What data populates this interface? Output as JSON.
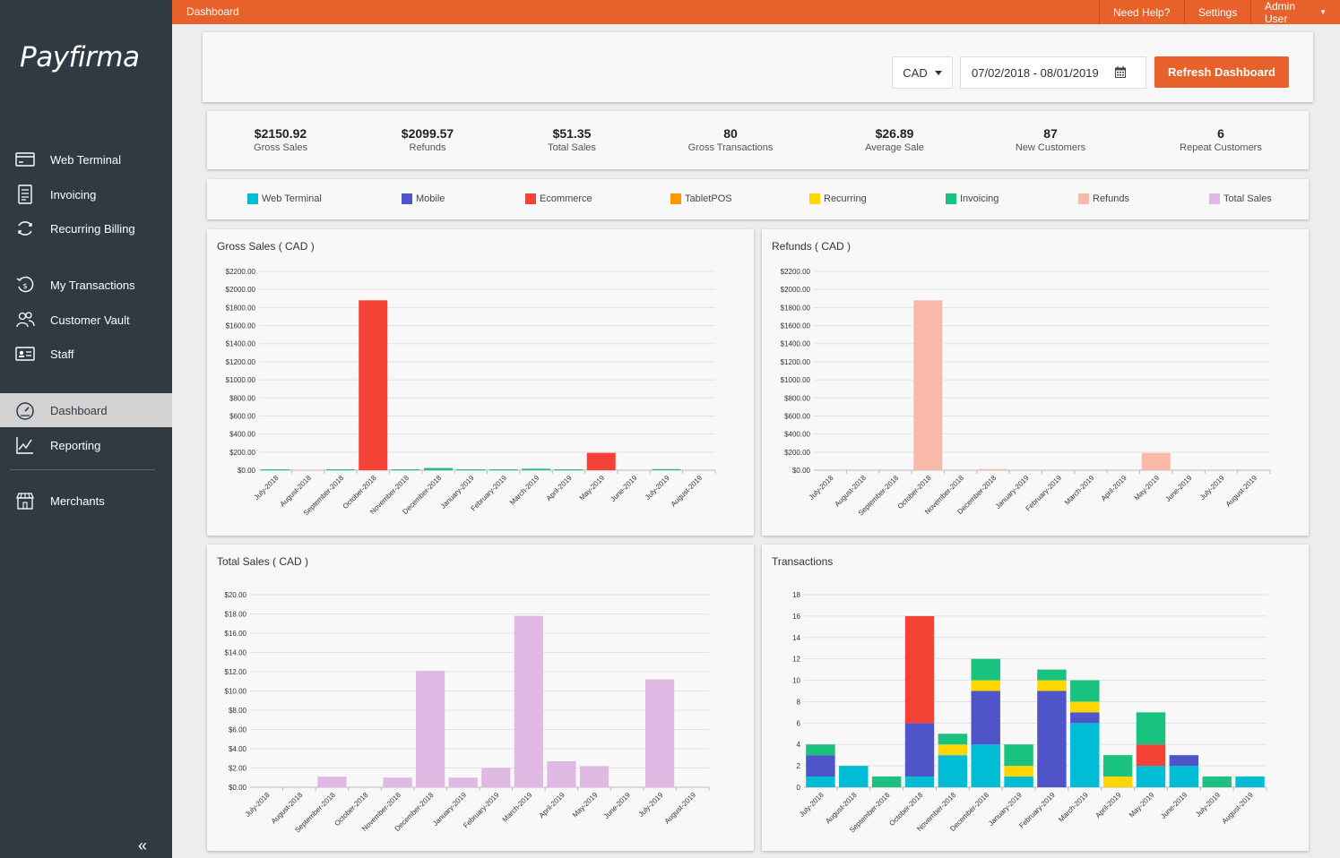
{
  "brand": "Payfirma",
  "sidebar": {
    "items": [
      {
        "label": "Web Terminal",
        "icon": "terminal-icon"
      },
      {
        "label": "Invoicing",
        "icon": "invoice-icon"
      },
      {
        "label": "Recurring Billing",
        "icon": "recurring-icon"
      },
      {
        "label": "My Transactions",
        "icon": "transactions-icon"
      },
      {
        "label": "Customer Vault",
        "icon": "customers-icon"
      },
      {
        "label": "Staff",
        "icon": "staff-icon"
      },
      {
        "label": "Dashboard",
        "icon": "dashboard-icon",
        "active": true
      },
      {
        "label": "Reporting",
        "icon": "reporting-icon"
      },
      {
        "label": "Merchants",
        "icon": "merchants-icon"
      }
    ],
    "collapse_label": "«"
  },
  "topbar": {
    "breadcrumb": "Dashboard",
    "help": "Need Help?",
    "settings": "Settings",
    "user": "Admin User"
  },
  "filters": {
    "currency": "CAD",
    "date_range": "07/02/2018 - 08/01/2019",
    "refresh_label": "Refresh Dashboard"
  },
  "stats": [
    {
      "value": "$2150.92",
      "label": "Gross Sales"
    },
    {
      "value": "$2099.57",
      "label": "Refunds"
    },
    {
      "value": "$51.35",
      "label": "Total Sales"
    },
    {
      "value": "80",
      "label": "Gross Transactions"
    },
    {
      "value": "$26.89",
      "label": "Average Sale"
    },
    {
      "value": "87",
      "label": "New Customers"
    },
    {
      "value": "6",
      "label": "Repeat Customers"
    }
  ],
  "legend": [
    {
      "label": "Web Terminal",
      "color": "#00bcd4"
    },
    {
      "label": "Mobile",
      "color": "#4f55c8"
    },
    {
      "label": "Ecommerce",
      "color": "#f44336"
    },
    {
      "label": "TabletPOS",
      "color": "#ff9800"
    },
    {
      "label": "Recurring",
      "color": "#ffd600"
    },
    {
      "label": "Invoicing",
      "color": "#19c27e"
    },
    {
      "label": "Refunds",
      "color": "#f8b9a8"
    },
    {
      "label": "Total Sales",
      "color": "#dfb8e3"
    }
  ],
  "chart_data": [
    {
      "type": "bar",
      "title": "Gross Sales ( CAD )",
      "categories": [
        "July-2018",
        "August-2018",
        "September-2018",
        "October-2018",
        "November-2018",
        "December-2018",
        "January-2019",
        "February-2019",
        "March-2019",
        "April-2019",
        "May-2019",
        "June-2019",
        "July-2019",
        "August-2019"
      ],
      "ylim": [
        0,
        2200
      ],
      "yticks": [
        "$0.00",
        "$200.00",
        "$400.00",
        "$600.00",
        "$800.00",
        "$1000.00",
        "$1200.00",
        "$1400.00",
        "$1600.00",
        "$1800.00",
        "$2000.00",
        "$2200.00"
      ],
      "series": [
        {
          "values": [
            4,
            0,
            1,
            1880,
            6,
            24,
            5,
            8,
            16,
            2,
            192,
            0,
            12,
            0
          ],
          "colors": [
            "#19c27e",
            "#19c27e",
            "#19c27e",
            "#f44336",
            "#19c27e",
            "#19c27e",
            "#19c27e",
            "#19c27e",
            "#19c27e",
            "#19c27e",
            "#f44336",
            "#19c27e",
            "#19c27e",
            "#19c27e"
          ]
        }
      ]
    },
    {
      "type": "bar",
      "title": "Refunds ( CAD )",
      "categories": [
        "July-2018",
        "August-2018",
        "September-2018",
        "October-2018",
        "November-2018",
        "December-2018",
        "January-2019",
        "February-2019",
        "March-2019",
        "April-2019",
        "May-2019",
        "June-2019",
        "July-2019",
        "August-2019"
      ],
      "ylim": [
        0,
        2200
      ],
      "yticks": [
        "$0.00",
        "$200.00",
        "$400.00",
        "$600.00",
        "$800.00",
        "$1000.00",
        "$1200.00",
        "$1400.00",
        "$1600.00",
        "$1800.00",
        "$2000.00",
        "$2200.00"
      ],
      "series": [
        {
          "values": [
            0,
            0,
            0,
            1880,
            0,
            12,
            0,
            0,
            0,
            0,
            190,
            0,
            0,
            0
          ],
          "color": "#f8b9a8"
        }
      ]
    },
    {
      "type": "bar",
      "title": "Total Sales ( CAD )",
      "categories": [
        "July-2018",
        "August-2018",
        "September-2018",
        "October-2018",
        "November-2018",
        "December-2018",
        "January-2019",
        "February-2019",
        "March-2019",
        "April-2019",
        "May-2019",
        "June-2019",
        "July-2019",
        "August-2019"
      ],
      "ylim": [
        0,
        20
      ],
      "yticks": [
        "$0.00",
        "$2.00",
        "$4.00",
        "$6.00",
        "$8.00",
        "$10.00",
        "$12.00",
        "$14.00",
        "$16.00",
        "$18.00",
        "$20.00"
      ],
      "series": [
        {
          "values": [
            0,
            0,
            1.1,
            0,
            1.0,
            12.1,
            1.0,
            2.0,
            17.8,
            2.7,
            2.2,
            0,
            11.2,
            0
          ],
          "color": "#dfb8e3"
        }
      ]
    },
    {
      "type": "bar",
      "stacked": true,
      "title": "Transactions",
      "categories": [
        "July-2018",
        "August-2018",
        "September-2018",
        "October-2018",
        "November-2018",
        "December-2018",
        "January-2019",
        "February-2019",
        "March-2019",
        "April-2019",
        "May-2019",
        "June-2019",
        "July-2019",
        "August-2019"
      ],
      "ylim": [
        0,
        18
      ],
      "yticks": [
        "0",
        "2",
        "4",
        "6",
        "8",
        "10",
        "12",
        "14",
        "16",
        "18"
      ],
      "series": [
        {
          "name": "Web Terminal",
          "color": "#00bcd4",
          "values": [
            1,
            2,
            0,
            1,
            3,
            4,
            1,
            0,
            6,
            0,
            2,
            2,
            0,
            1
          ]
        },
        {
          "name": "Mobile",
          "color": "#4f55c8",
          "values": [
            2,
            0,
            0,
            5,
            0,
            5,
            0,
            9,
            1,
            0,
            0,
            1,
            0,
            0
          ]
        },
        {
          "name": "Ecommerce",
          "color": "#f44336",
          "values": [
            0,
            0,
            0,
            10,
            0,
            0,
            0,
            0,
            0,
            0,
            2,
            0,
            0,
            0
          ]
        },
        {
          "name": "TabletPOS",
          "color": "#ff9800",
          "values": [
            0,
            0,
            0,
            0,
            0,
            0,
            0,
            0,
            0,
            0,
            0,
            0,
            0,
            0
          ]
        },
        {
          "name": "Recurring",
          "color": "#ffd600",
          "values": [
            0,
            0,
            0,
            0,
            1,
            1,
            1,
            1,
            1,
            1,
            0,
            0,
            0,
            0
          ]
        },
        {
          "name": "Invoicing",
          "color": "#19c27e",
          "values": [
            1,
            0,
            1,
            0,
            1,
            2,
            2,
            1,
            2,
            2,
            3,
            0,
            1,
            0
          ]
        }
      ]
    }
  ]
}
